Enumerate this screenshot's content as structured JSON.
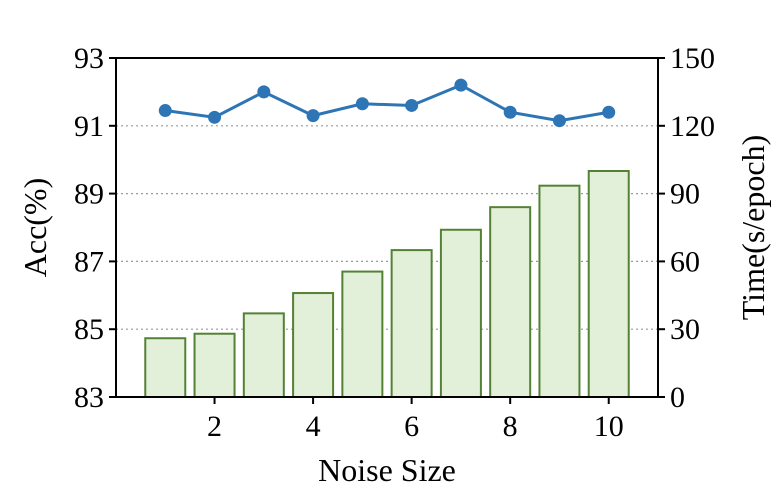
{
  "chart_data": {
    "type": "bar+line",
    "xlabel": "Noise Size",
    "ylabel_left": "Acc(%)",
    "ylabel_right": "Time(s/epoch)",
    "x": [
      1,
      2,
      3,
      4,
      5,
      6,
      7,
      8,
      9,
      10
    ],
    "x_ticks": [
      2,
      4,
      6,
      8,
      10
    ],
    "xlim": [
      0,
      11
    ],
    "ylim_left": [
      83,
      93
    ],
    "y_ticks_left": [
      83,
      85,
      87,
      89,
      91,
      93
    ],
    "ylim_right": [
      0,
      150
    ],
    "y_ticks_right": [
      0,
      30,
      60,
      90,
      120,
      150
    ],
    "grid": "horizontal",
    "series": [
      {
        "kind": "bar",
        "axis": "right",
        "values": [
          26,
          28,
          37,
          46,
          55.5,
          65,
          74,
          84,
          93.5,
          100
        ],
        "color": "#e2efd9",
        "edge_color": "#548235"
      },
      {
        "kind": "line",
        "axis": "left",
        "values": [
          91.45,
          91.25,
          92.0,
          91.3,
          91.65,
          91.6,
          92.2,
          91.4,
          91.15,
          91.4
        ],
        "color": "#2e75b6"
      }
    ]
  }
}
